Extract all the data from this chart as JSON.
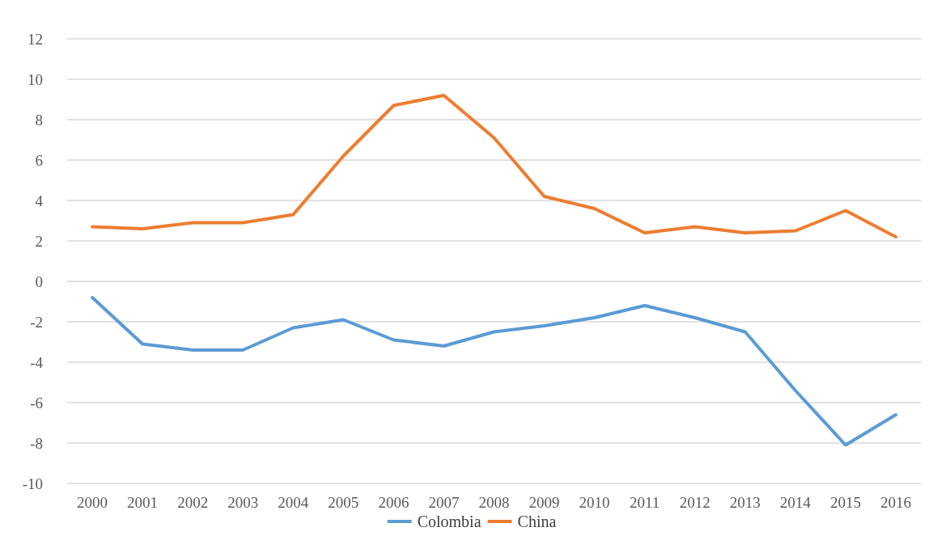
{
  "chart_data": {
    "type": "line",
    "categories": [
      "2000",
      "2001",
      "2002",
      "2003",
      "2004",
      "2005",
      "2006",
      "2007",
      "2008",
      "2009",
      "2010",
      "2011",
      "2012",
      "2013",
      "2014",
      "2015",
      "2016"
    ],
    "series": [
      {
        "name": "Colombia",
        "color": "#5b9bd5",
        "values": [
          -0.8,
          -3.1,
          -3.4,
          -3.4,
          -2.3,
          -1.9,
          -2.9,
          -3.2,
          -2.5,
          -2.2,
          -1.8,
          -1.2,
          -1.8,
          -2.5,
          -5.4,
          -8.1,
          -6.6
        ]
      },
      {
        "name": "China",
        "color": "#ed7d31",
        "values": [
          2.7,
          2.6,
          2.9,
          2.9,
          3.3,
          6.2,
          8.7,
          9.2,
          7.1,
          4.2,
          3.6,
          2.4,
          2.7,
          2.4,
          2.5,
          3.5,
          2.2
        ]
      }
    ],
    "ylim": [
      -10,
      12
    ],
    "yticks": [
      -10,
      -8,
      -6,
      -4,
      -2,
      0,
      2,
      4,
      6,
      8,
      10,
      12
    ],
    "grid": "y",
    "legend": "bottom",
    "marker": "none",
    "line_style": "solid"
  }
}
